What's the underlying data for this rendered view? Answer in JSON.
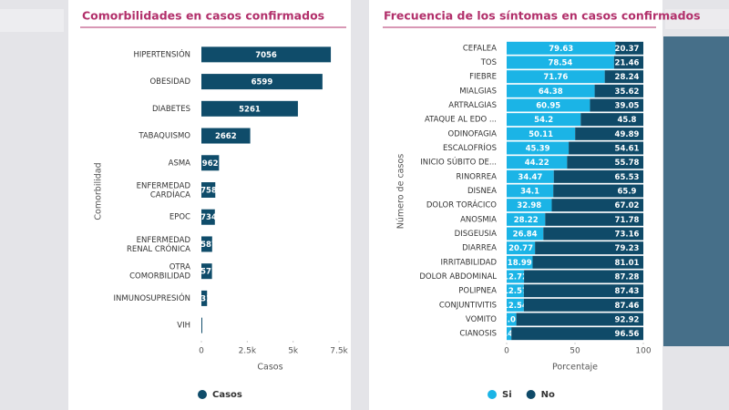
{
  "chart_data": [
    {
      "type": "bar",
      "orientation": "horizontal",
      "stacked": false,
      "title": "Comorbilidades en casos confirmados",
      "categories": [
        "HIPERTENSIÓN",
        "OBESIDAD",
        "DIABETES",
        "TABAQUISMO",
        "ASMA",
        "ENFERMEDAD CARDÍACA",
        "EPOC",
        "ENFERMEDAD RENAL CRÓNICA",
        "OTRA COMORBILIDAD",
        "INMUNOSUPRESIÓN",
        "VIH"
      ],
      "series": [
        {
          "name": "Casos",
          "color": "#0f4c6a",
          "values": [
            7056,
            6599,
            5261,
            2662,
            962,
            758,
            734,
            587,
            577,
            310,
            49
          ]
        }
      ],
      "xlim": [
        0,
        7500
      ],
      "xticks": [
        0,
        {
          "value": 2500,
          "label": "2.5k"
        },
        {
          "value": 5000,
          "label": "5k"
        },
        {
          "value": 7500,
          "label": "7.5k"
        }
      ],
      "xlabel": "Casos",
      "ylabel": "Comorbilidad",
      "legend": "bottom-left"
    },
    {
      "type": "bar",
      "orientation": "horizontal",
      "stacked": true,
      "title": "Frecuencia de los síntomas en casos confirmados",
      "categories": [
        "CEFALEA",
        "TOS",
        "FIEBRE",
        "MIALGIAS",
        "ARTRALGIAS",
        "ATAQUE AL EDO ...",
        "ODINOFAGIA",
        "ESCALOFRÍOS",
        "INICIO SÚBITO DE...",
        "RINORREA",
        "DISNEA",
        "DOLOR TORÁCICO",
        "ANOSMIA",
        "DISGEUSIA",
        "DIARREA",
        "IRRITABILIDAD",
        "DOLOR ABDOMINAL",
        "POLIPNEA",
        "CONJUNTIVITIS",
        "VOMITO",
        "CIANOSIS"
      ],
      "series": [
        {
          "name": "Si",
          "color": "#1bb4e6",
          "values": [
            79.63,
            78.54,
            71.76,
            64.38,
            60.95,
            54.2,
            50.11,
            45.39,
            44.22,
            34.47,
            34.1,
            32.98,
            28.22,
            26.84,
            20.77,
            18.99,
            12.72,
            12.57,
            12.54,
            7.08,
            3.44
          ]
        },
        {
          "name": "No",
          "color": "#0f4a68",
          "values": [
            20.37,
            21.46,
            28.24,
            35.62,
            39.05,
            45.8,
            49.89,
            54.61,
            55.78,
            65.53,
            65.9,
            67.02,
            71.78,
            73.16,
            79.23,
            81.01,
            87.28,
            87.43,
            87.46,
            92.92,
            96.56
          ]
        }
      ],
      "xlim": [
        0,
        100
      ],
      "xticks": [
        0,
        50,
        100
      ],
      "xlabel": "Porcentaje",
      "ylabel": "Número de casos",
      "legend": "bottom-center"
    }
  ]
}
